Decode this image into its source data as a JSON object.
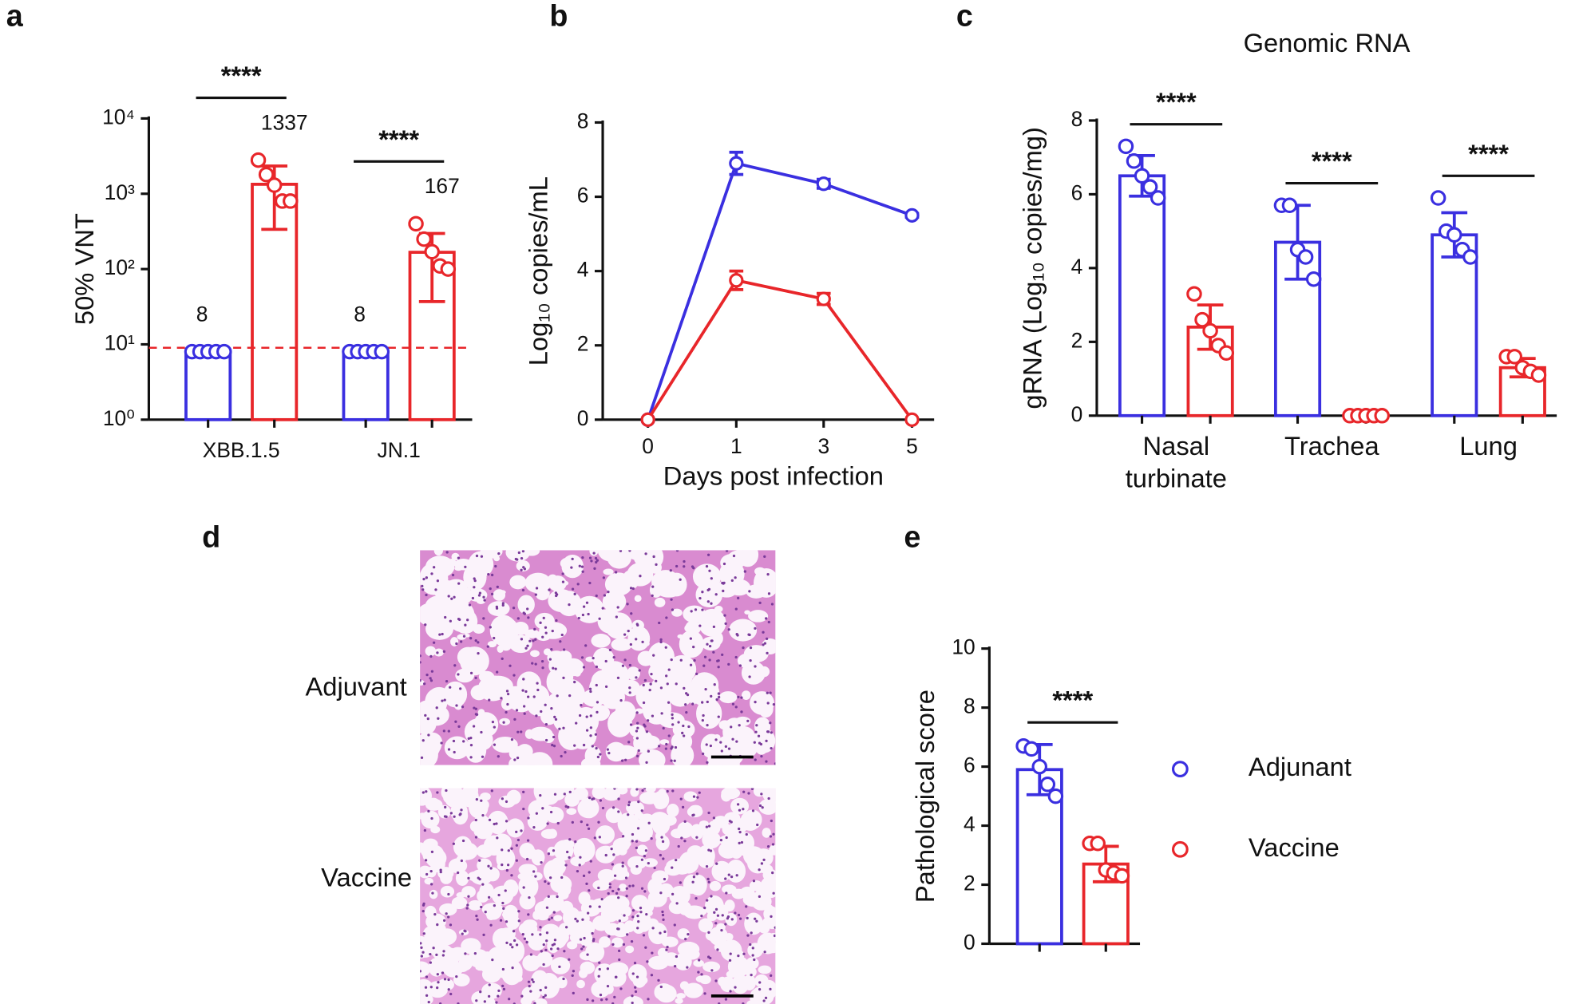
{
  "chart_data": [
    {
      "panel": "a",
      "type": "bar",
      "log_y": true,
      "data_labels": true,
      "ylabel": "50% VNT",
      "categories": [
        "XBB.1.5",
        "JN.1"
      ],
      "ylim": [
        1,
        10000
      ],
      "yticks": [
        {
          "value": 1,
          "label": "10⁰"
        },
        {
          "value": 10,
          "label": "10¹"
        },
        {
          "value": 100,
          "label": "10²"
        },
        {
          "value": 1000,
          "label": "10³"
        },
        {
          "value": 10000,
          "label": "10⁴"
        }
      ],
      "threshold": 9,
      "threshold_color": "#e8262a",
      "significance": [
        "****",
        "****"
      ],
      "series": [
        {
          "name": "Adjunant",
          "color": "#3a2fe0",
          "values": [
            8,
            8
          ],
          "errors": [
            0,
            0
          ],
          "points": [
            [
              8,
              8,
              8,
              8,
              8
            ],
            [
              8,
              8,
              8,
              8,
              8
            ]
          ]
        },
        {
          "name": "Vaccine",
          "color": "#e8262a",
          "values": [
            1337,
            167
          ],
          "errors": [
            1000,
            130
          ],
          "points": [
            [
              2800,
              1800,
              1300,
              800,
              800
            ],
            [
              400,
              250,
              170,
              110,
              100
            ]
          ]
        }
      ]
    },
    {
      "panel": "b",
      "type": "line",
      "xlabel": "Days post infection",
      "ylabel": "Log₁₀ copies/mL",
      "categories": [
        "0",
        "1",
        "3",
        "5"
      ],
      "ylim": [
        0,
        8
      ],
      "yticks": [
        0,
        2,
        4,
        6,
        8
      ],
      "series": [
        {
          "name": "Adjunant",
          "color": "#3a2fe0",
          "values": [
            0,
            6.9,
            6.35,
            5.5
          ],
          "errors": [
            0,
            0.3,
            0.12,
            0.05
          ]
        },
        {
          "name": "Vaccine",
          "color": "#e8262a",
          "values": [
            0,
            3.75,
            3.25,
            0
          ],
          "errors": [
            0,
            0.25,
            0.15,
            0
          ]
        }
      ]
    },
    {
      "panel": "c",
      "type": "bar",
      "title": "Genomic RNA",
      "ylabel": "gRNA (Log₁₀ copies/mg)",
      "categories": [
        "Nasal turbinate",
        "Trachea",
        "Lung"
      ],
      "ylim": [
        0,
        8
      ],
      "yticks": [
        0,
        2,
        4,
        6,
        8
      ],
      "significance": [
        "****",
        "****",
        "****"
      ],
      "series": [
        {
          "name": "Adjunant",
          "color": "#3a2fe0",
          "values": [
            6.5,
            4.7,
            4.9
          ],
          "errors": [
            0.55,
            1.0,
            0.6
          ],
          "points": [
            [
              7.3,
              6.9,
              6.5,
              6.2,
              5.9
            ],
            [
              5.7,
              5.7,
              4.5,
              4.3,
              3.7
            ],
            [
              5.9,
              5.0,
              4.9,
              4.5,
              4.3
            ]
          ]
        },
        {
          "name": "Vaccine",
          "color": "#e8262a",
          "values": [
            2.4,
            0,
            1.3
          ],
          "errors": [
            0.6,
            0,
            0.25
          ],
          "points": [
            [
              3.3,
              2.6,
              2.3,
              1.9,
              1.7
            ],
            [
              0,
              0,
              0,
              0,
              0
            ],
            [
              1.6,
              1.6,
              1.3,
              1.2,
              1.1
            ]
          ]
        }
      ]
    },
    {
      "panel": "e",
      "type": "bar",
      "legend": true,
      "legend_position": "right",
      "ylabel": "Pathological score",
      "categories": [
        null
      ],
      "ylim": [
        0,
        10
      ],
      "yticks": [
        0,
        2,
        4,
        6,
        8,
        10
      ],
      "significance": [
        "****"
      ],
      "series": [
        {
          "name": "Adjunant",
          "color": "#3a2fe0",
          "values": [
            5.9
          ],
          "errors": [
            0.85
          ],
          "points": [
            [
              6.7,
              6.6,
              6.0,
              5.4,
              5.0
            ]
          ]
        },
        {
          "name": "Vaccine",
          "color": "#e8262a",
          "values": [
            2.7
          ],
          "errors": [
            0.6
          ],
          "points": [
            [
              3.4,
              3.4,
              2.5,
              2.4,
              2.3
            ]
          ]
        }
      ]
    }
  ],
  "histology": {
    "panel": "d",
    "rows": [
      "Adjuvant",
      "Vaccine"
    ]
  }
}
